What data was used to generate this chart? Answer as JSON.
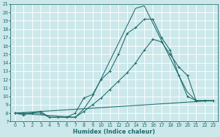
{
  "xlabel": "Humidex (Indice chaleur)",
  "xlim": [
    -0.5,
    23.5
  ],
  "ylim": [
    7,
    21
  ],
  "xticks": [
    0,
    1,
    2,
    3,
    4,
    5,
    6,
    7,
    8,
    9,
    10,
    11,
    12,
    13,
    14,
    15,
    16,
    17,
    18,
    19,
    20,
    21,
    22,
    23
  ],
  "yticks": [
    7,
    8,
    9,
    10,
    11,
    12,
    13,
    14,
    15,
    16,
    17,
    18,
    19,
    20,
    21
  ],
  "bg_color": "#cce8eb",
  "grid_color": "#ffffff",
  "line_color": "#1e6b6b",
  "line1_x": [
    0,
    1,
    2,
    3,
    4,
    5,
    6,
    7,
    8,
    9,
    10,
    11,
    12,
    13,
    14,
    15,
    16,
    17,
    18,
    19,
    20,
    21,
    22,
    23
  ],
  "line1_y": [
    8,
    7.8,
    8,
    8.2,
    7.5,
    7.5,
    7.5,
    8.0,
    9.8,
    10.2,
    12.0,
    13.0,
    15.0,
    17.5,
    18.2,
    19.2,
    19.2,
    17.0,
    15.5,
    12.5,
    10.0,
    9.5,
    9.5,
    9.5
  ],
  "line2_x": [
    0,
    1,
    2,
    3,
    4,
    5,
    6,
    7,
    8,
    9,
    10,
    11,
    12,
    13,
    14,
    15,
    16,
    17,
    18,
    19,
    20,
    21,
    22,
    23
  ],
  "line2_y": [
    8,
    8,
    8,
    8,
    7.5,
    7.5,
    7.5,
    7.5,
    8.2,
    9.0,
    9.8,
    10.8,
    11.8,
    12.8,
    14.0,
    15.5,
    16.8,
    16.5,
    15.0,
    13.5,
    12.5,
    9.5,
    9.5,
    9.5
  ],
  "line3_x": [
    0,
    23
  ],
  "line3_y": [
    8,
    9.5
  ],
  "line4_x": [
    0,
    7,
    8,
    9,
    14,
    15,
    19,
    20,
    21,
    22,
    23
  ],
  "line4_y": [
    8,
    7.5,
    8.5,
    10.0,
    20.5,
    20.8,
    12.5,
    10.5,
    9.5,
    9.5,
    9.5
  ]
}
